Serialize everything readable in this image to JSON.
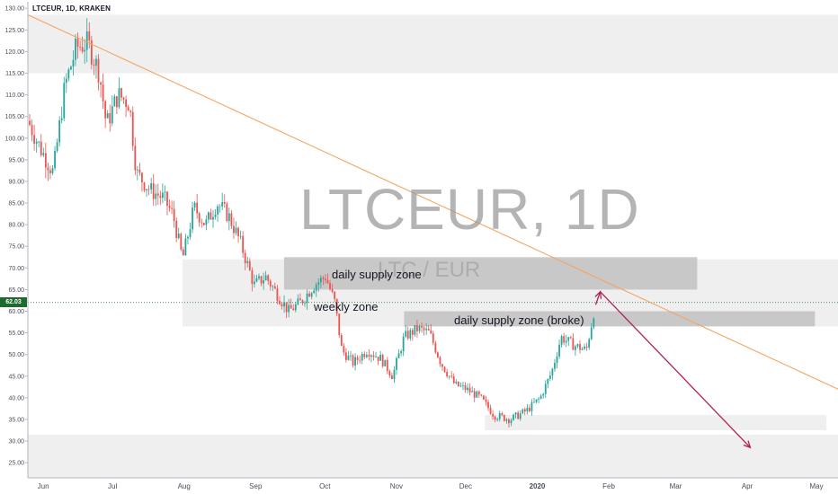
{
  "header": {
    "title": "LTCEUR, 1D, KRAKEN"
  },
  "watermark": {
    "symbol": "LTCEUR, 1D",
    "pair": "LTC / EUR"
  },
  "price_label": {
    "value": "62.03"
  },
  "annotations": {
    "daily_supply": "daily supply zone",
    "weekly": "weekly zone",
    "daily_supply_broke": "daily supply zone (broke)"
  },
  "colors": {
    "up": "#26a69a",
    "down": "#ef5350",
    "trendline": "#f7a35c",
    "arrow": "#b0205a",
    "zone_light": "#ececec",
    "zone_dark": "#b8b8b8",
    "price_tag": "#1e6b2e"
  },
  "chart_data": {
    "type": "candlestick",
    "title": "LTCEUR, 1D, KRAKEN",
    "ylim": [
      21.5,
      131.5
    ],
    "y_ticks": [
      "130.00",
      "125.00",
      "120.00",
      "115.00",
      "110.00",
      "105.00",
      "100.00",
      "95.00",
      "90.00",
      "85.00",
      "80.00",
      "75.00",
      "70.00",
      "65.00",
      "60.00",
      "55.00",
      "50.00",
      "45.00",
      "40.00",
      "35.00",
      "30.00",
      "25.00"
    ],
    "x_ticks": [
      "Jun",
      "Jul",
      "Aug",
      "Sep",
      "Oct",
      "Nov",
      "Dec",
      "2020",
      "Feb",
      "Mar",
      "Apr",
      "May"
    ],
    "last_price": 62.03,
    "close_path": [
      {
        "x": "2019-05-30",
        "y": 104
      },
      {
        "x": "2019-06-05",
        "y": 97
      },
      {
        "x": "2019-06-10",
        "y": 92
      },
      {
        "x": "2019-06-15",
        "y": 112
      },
      {
        "x": "2019-06-20",
        "y": 121
      },
      {
        "x": "2019-06-25",
        "y": 122
      },
      {
        "x": "2019-06-30",
        "y": 115
      },
      {
        "x": "2019-07-03",
        "y": 103
      },
      {
        "x": "2019-07-08",
        "y": 110
      },
      {
        "x": "2019-07-13",
        "y": 108
      },
      {
        "x": "2019-07-16",
        "y": 92
      },
      {
        "x": "2019-07-22",
        "y": 88
      },
      {
        "x": "2019-07-28",
        "y": 86
      },
      {
        "x": "2019-08-01",
        "y": 82
      },
      {
        "x": "2019-08-05",
        "y": 72
      },
      {
        "x": "2019-08-10",
        "y": 84
      },
      {
        "x": "2019-08-15",
        "y": 80
      },
      {
        "x": "2019-08-20",
        "y": 85
      },
      {
        "x": "2019-08-25",
        "y": 82
      },
      {
        "x": "2019-08-30",
        "y": 76
      },
      {
        "x": "2019-09-05",
        "y": 66
      },
      {
        "x": "2019-09-10",
        "y": 68
      },
      {
        "x": "2019-09-15",
        "y": 64
      },
      {
        "x": "2019-09-20",
        "y": 60
      },
      {
        "x": "2019-09-25",
        "y": 62
      },
      {
        "x": "2019-10-01",
        "y": 66
      },
      {
        "x": "2019-10-06",
        "y": 68
      },
      {
        "x": "2019-10-10",
        "y": 62
      },
      {
        "x": "2019-10-13",
        "y": 51
      },
      {
        "x": "2019-10-18",
        "y": 48
      },
      {
        "x": "2019-10-24",
        "y": 51
      },
      {
        "x": "2019-10-30",
        "y": 49
      },
      {
        "x": "2019-11-04",
        "y": 45
      },
      {
        "x": "2019-11-09",
        "y": 54
      },
      {
        "x": "2019-11-15",
        "y": 56
      },
      {
        "x": "2019-11-20",
        "y": 55
      },
      {
        "x": "2019-11-25",
        "y": 48
      },
      {
        "x": "2019-12-01",
        "y": 43
      },
      {
        "x": "2019-12-06",
        "y": 42
      },
      {
        "x": "2019-12-12",
        "y": 40
      },
      {
        "x": "2019-12-18",
        "y": 36
      },
      {
        "x": "2019-12-25",
        "y": 35
      },
      {
        "x": "2020-01-01",
        "y": 37
      },
      {
        "x": "2020-01-07",
        "y": 40
      },
      {
        "x": "2020-01-12",
        "y": 46
      },
      {
        "x": "2020-01-16",
        "y": 54
      },
      {
        "x": "2020-01-22",
        "y": 52
      },
      {
        "x": "2020-01-27",
        "y": 51
      },
      {
        "x": "2020-01-31",
        "y": 62
      }
    ],
    "trendline": [
      {
        "x": "2019-05-30",
        "y": 128.5
      },
      {
        "x": "2020-05-15",
        "y": 42
      }
    ],
    "zones": [
      {
        "name": "top zone",
        "x0": "2019-05-30",
        "x1": "2020-05-15",
        "y0": 115,
        "y1": 128.5,
        "shade": "light"
      },
      {
        "name": "weekly zone",
        "x0": "2019-08-05",
        "x1": "2020-05-15",
        "y0": 56.5,
        "y1": 72,
        "shade": "light"
      },
      {
        "name": "daily supply zone",
        "x0": "2019-09-18",
        "x1": "2020-03-15",
        "y0": 65,
        "y1": 72.5,
        "shade": "dark"
      },
      {
        "name": "daily supply zone (broke)",
        "x0": "2019-11-09",
        "x1": "2020-05-05",
        "y0": 56.5,
        "y1": 60,
        "shade": "dark"
      },
      {
        "name": "demand zone",
        "x0": "2019-12-14",
        "x1": "2020-05-10",
        "y0": 32.5,
        "y1": 36,
        "shade": "light"
      },
      {
        "name": "bottom zone",
        "x0": "2019-05-30",
        "x1": "2020-05-15",
        "y0": 21.5,
        "y1": 31.5,
        "shade": "light"
      }
    ],
    "projection_arrow": [
      {
        "x": "2020-01-31",
        "y": 61.5
      },
      {
        "x": "2020-02-02",
        "y": 64.5
      },
      {
        "x": "2020-04-07",
        "y": 28.5
      }
    ]
  }
}
